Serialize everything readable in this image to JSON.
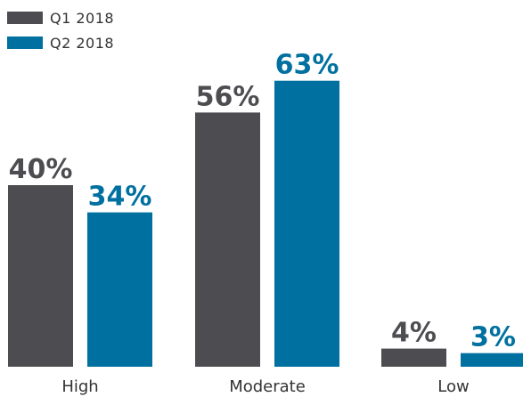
{
  "colors": {
    "q1": "#4d4d51",
    "q2": "#0070a0",
    "value_text_q1": "#4d4d51",
    "value_text_q2": "#0070a0",
    "category_text": "#333333"
  },
  "chart_data": {
    "type": "bar",
    "categories": [
      "High",
      "Moderate",
      "Low"
    ],
    "series": [
      {
        "name": "Q1 2018",
        "values": [
          40,
          56,
          4
        ],
        "labels": [
          "40%",
          "56%",
          "4%"
        ]
      },
      {
        "name": "Q2 2018",
        "values": [
          34,
          63,
          3
        ],
        "labels": [
          "34%",
          "63%",
          "3%"
        ]
      }
    ],
    "title": "",
    "xlabel": "",
    "ylabel": "",
    "ylim": [
      0,
      70
    ],
    "grid": false,
    "legend": "top-left"
  }
}
